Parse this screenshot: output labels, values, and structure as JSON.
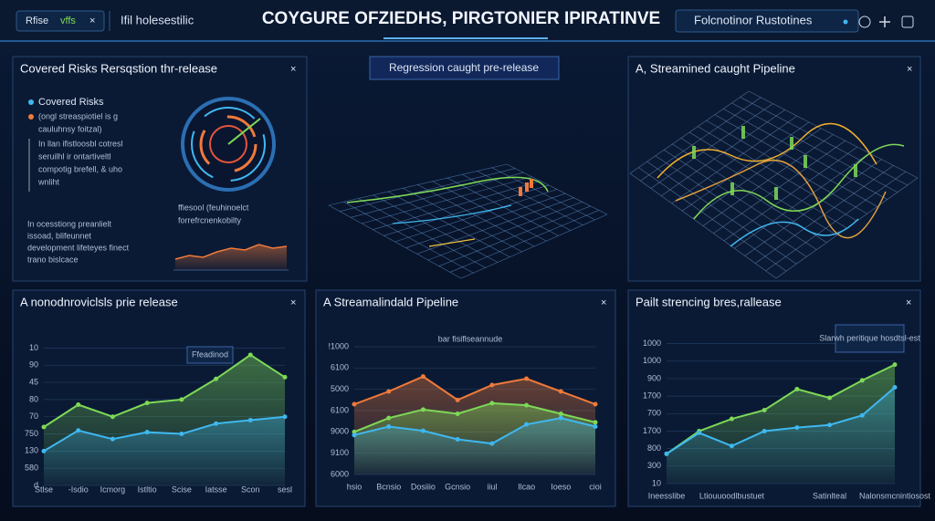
{
  "topbar": {
    "tabs": [
      "Rfise",
      "vffs"
    ],
    "close": "×",
    "subtitle": "Ifil holesestilic",
    "title": "COYGURE OFZIEDHS, PIRGTONIER IPIRATINVE",
    "right": "Folcnotinor Rustotines"
  },
  "overview": {
    "title": "Covered Risks Rersqstion thr-release",
    "close": "×",
    "legend": [
      "Covered Risks",
      "(ongl streaspiotiel is g"
    ],
    "legend_note": "cauluhnsy foitzal)",
    "notes": [
      "In llan ifistloosbl cotresl",
      "seruilhl ir ontartiveltl",
      "compotig brefell, & uho",
      "wnliht"
    ],
    "gauge_caption": [
      "ffiesool (feuhinoelct",
      "forrefrcnenkobilty"
    ],
    "summary": [
      "In ocesstiong preanlielt",
      "issoad, blifeunnet",
      "development lifeteyes finect",
      "trano bislcace"
    ],
    "mini_values": [
      3,
      4,
      3.5,
      5,
      6,
      5.5,
      7,
      6,
      6.5
    ],
    "mini_ylim": [
      0,
      10
    ]
  },
  "regression": {
    "label": "Regression caught pre-release"
  },
  "pipeline": {
    "title": "A, Streamined caught Pipeline",
    "close": "×"
  },
  "charts": [
    {
      "type": "line",
      "title": "A nonodnroviclsls prie release",
      "close": "×",
      "annotation": "Ffeadinod",
      "ylim": [
        0,
        8.5
      ],
      "yticks": [
        {
          "value": 0,
          "label": "d"
        },
        {
          "value": 1,
          "label": "580"
        },
        {
          "value": 2,
          "label": "130"
        },
        {
          "value": 3,
          "label": "750"
        },
        {
          "value": 4,
          "label": "70"
        },
        {
          "value": 5,
          "label": "80"
        },
        {
          "value": 6,
          "label": "45"
        },
        {
          "value": 7,
          "label": "90"
        },
        {
          "value": 8,
          "label": "10"
        }
      ],
      "categories": [
        "Stlse",
        "-Isdio",
        "Icmorg",
        "Istltio",
        "Scise",
        "Iatsse",
        "Scon",
        "sesl"
      ],
      "series": [
        {
          "color": "#7ed957",
          "values": [
            3.4,
            4.7,
            4.0,
            4.8,
            5.0,
            6.2,
            7.6,
            6.3
          ]
        },
        {
          "color": "#3fb8f0",
          "values": [
            2.0,
            3.2,
            2.7,
            3.1,
            3.0,
            3.6,
            3.8,
            4.0
          ]
        }
      ]
    },
    {
      "type": "line",
      "title": "A Streamalindald Pipeline",
      "close": "×",
      "annotation": "bar fisiflseannude",
      "ylim": [
        0,
        6.3
      ],
      "yticks": [
        {
          "value": 0,
          "label": "6000"
        },
        {
          "value": 1,
          "label": "9100"
        },
        {
          "value": 2,
          "label": "9000"
        },
        {
          "value": 3,
          "label": "6100"
        },
        {
          "value": 4,
          "label": "5000"
        },
        {
          "value": 5,
          "label": "6100"
        },
        {
          "value": 6,
          "label": "!1000"
        }
      ],
      "categories": [
        "hsio",
        "Bcnsio",
        "Dosiiio",
        "Gcnsio",
        "iiul",
        "Ilcao",
        "Ioeso",
        "cioi"
      ],
      "series": [
        {
          "color": "#f07a3a",
          "values": [
            3.3,
            3.9,
            4.6,
            3.5,
            4.2,
            4.5,
            3.9,
            3.3
          ]
        },
        {
          "color": "#7ed957",
          "values": [
            2.0,
            2.65,
            3.05,
            2.85,
            3.35,
            3.25,
            2.85,
            2.45
          ]
        },
        {
          "color": "#3fb8f0",
          "values": [
            1.85,
            2.25,
            2.05,
            1.65,
            1.45,
            2.35,
            2.65,
            2.25
          ]
        }
      ]
    },
    {
      "type": "line",
      "title": "Pailt strencing bres,rallease",
      "close": "×",
      "annotation": "Slarwh peritique hosdtsl-est",
      "ylim": [
        0,
        8.5
      ],
      "yticks": [
        {
          "value": 0,
          "label": "10"
        },
        {
          "value": 1,
          "label": "300"
        },
        {
          "value": 2,
          "label": "800"
        },
        {
          "value": 3,
          "label": "1700"
        },
        {
          "value": 4,
          "label": "700"
        },
        {
          "value": 5,
          "label": "1700"
        },
        {
          "value": 6,
          "label": "900"
        },
        {
          "value": 7,
          "label": "1000"
        },
        {
          "value": 8,
          "label": "1000"
        }
      ],
      "categories": [
        "Ineesslibe",
        null,
        "Ltiouuoodlbustuet",
        null,
        null,
        "Satinlteal",
        null,
        "Nalonsmcnintiosost"
      ],
      "series": [
        {
          "color": "#7ed957",
          "values": [
            1.7,
            3.0,
            3.7,
            4.2,
            5.4,
            4.9,
            5.9,
            6.8
          ]
        },
        {
          "color": "#3fb8f0",
          "values": [
            1.7,
            2.9,
            2.15,
            3.0,
            3.2,
            3.35,
            3.9,
            5.5
          ]
        }
      ]
    }
  ]
}
